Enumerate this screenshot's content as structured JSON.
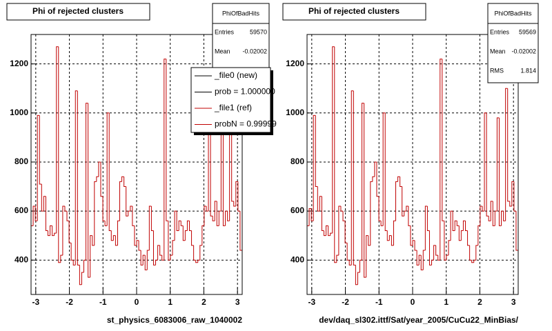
{
  "chart_data": [
    {
      "type": "histogram",
      "title": "Phi of rejected clusters",
      "x_label": "st_physics_6083006_raw_1040002",
      "stats": {
        "name": "PhiOfBadHits",
        "rows": [
          [
            "Entries",
            59570
          ],
          [
            "Mean",
            -0.02002
          ]
        ]
      },
      "legend": [
        {
          "label": "_file0 (new)",
          "color": "#000000"
        },
        {
          "label": "prob = 1.000000",
          "color": "#000000"
        },
        {
          "label": "_file1 (ref)",
          "color": "#c00000"
        },
        {
          "label": "probN = 0.99999",
          "color": "#c00000"
        }
      ],
      "color": "#c00000",
      "xlim": [
        -3.14,
        3.14
      ],
      "ylim": [
        260,
        1320
      ],
      "xticks": [
        -3,
        -2,
        -1,
        0,
        1,
        2,
        3
      ],
      "yticks": [
        400,
        600,
        800,
        1000,
        1200
      ],
      "grid": true,
      "bins": [
        -3.14,
        -3.0772,
        -3.0144,
        -2.9516,
        -2.8888,
        -2.826,
        -2.7632,
        -2.7004,
        -2.6376,
        -2.5748,
        -2.512,
        -2.4492,
        -2.3864,
        -2.3236,
        -2.2608,
        -2.198,
        -2.1352,
        -2.0724,
        -2.0096,
        -1.9468,
        -1.884,
        -1.8212,
        -1.7584,
        -1.6956,
        -1.6328,
        -1.57,
        -1.5072,
        -1.4444,
        -1.3816,
        -1.3188,
        -1.256,
        -1.1932,
        -1.1304,
        -1.0676,
        -1.0048,
        -0.942,
        -0.8792,
        -0.8164,
        -0.7536,
        -0.6908,
        -0.628,
        -0.5652,
        -0.5024,
        -0.4396,
        -0.3768,
        -0.314,
        -0.2512,
        -0.1884,
        -0.1256,
        -0.0628,
        0,
        0.0628,
        0.1256,
        0.1884,
        0.2512,
        0.314,
        0.3768,
        0.4396,
        0.5024,
        0.5652,
        0.628,
        0.6908,
        0.7536,
        0.8164,
        0.8792,
        0.942,
        1.0048,
        1.0676,
        1.1304,
        1.1932,
        1.256,
        1.3188,
        1.3816,
        1.4444,
        1.5072,
        1.57,
        1.6328,
        1.6956,
        1.7584,
        1.8212,
        1.884,
        1.9468,
        2.0096,
        2.0724,
        2.1352,
        2.198,
        2.2608,
        2.3236,
        2.3864,
        2.4492,
        2.512,
        2.5748,
        2.6376,
        2.7004,
        2.7632,
        2.826,
        2.8888,
        2.9516,
        3.0144,
        3.0772,
        3.14
      ],
      "values": [
        540,
        620,
        560,
        990,
        710,
        600,
        660,
        520,
        500,
        540,
        500,
        510,
        1270,
        390,
        420,
        620,
        600,
        560,
        470,
        400,
        380,
        1090,
        380,
        300,
        350,
        400,
        1040,
        330,
        500,
        460,
        720,
        740,
        800,
        660,
        560,
        540,
        1000,
        520,
        480,
        500,
        460,
        560,
        720,
        740,
        700,
        580,
        600,
        620,
        540,
        460,
        480,
        440,
        380,
        420,
        360,
        440,
        620,
        520,
        380,
        400,
        460,
        420,
        400,
        1220,
        560,
        400,
        420,
        480,
        600,
        520,
        560,
        540,
        480,
        520,
        560,
        520,
        460,
        400,
        390,
        400,
        460,
        540,
        620,
        600,
        1000,
        580,
        560,
        640,
        540,
        600,
        980,
        540,
        600,
        560,
        1100,
        640,
        620,
        720,
        600,
        440
      ]
    },
    {
      "type": "histogram",
      "title": "Phi of rejected clusters",
      "x_label": "dev/daq_sl302.ittf/Sat/year_2005/CuCu22_MinBias/",
      "stats": {
        "name": "PhiOfBadHits",
        "rows": [
          [
            "Entries",
            59569
          ],
          [
            "Mean",
            -0.02002
          ],
          [
            "RMS",
            1.814
          ]
        ]
      },
      "color": "#c00000",
      "xlim": [
        -3.14,
        3.14
      ],
      "ylim": [
        260,
        1320
      ],
      "xticks": [
        -3,
        -2,
        -1,
        0,
        1,
        2,
        3
      ],
      "yticks": [
        400,
        600,
        800,
        1000,
        1200
      ],
      "grid": true,
      "bins": [
        -3.14,
        -3.0772,
        -3.0144,
        -2.9516,
        -2.8888,
        -2.826,
        -2.7632,
        -2.7004,
        -2.6376,
        -2.5748,
        -2.512,
        -2.4492,
        -2.3864,
        -2.3236,
        -2.2608,
        -2.198,
        -2.1352,
        -2.0724,
        -2.0096,
        -1.9468,
        -1.884,
        -1.8212,
        -1.7584,
        -1.6956,
        -1.6328,
        -1.57,
        -1.5072,
        -1.4444,
        -1.3816,
        -1.3188,
        -1.256,
        -1.1932,
        -1.1304,
        -1.0676,
        -1.0048,
        -0.942,
        -0.8792,
        -0.8164,
        -0.7536,
        -0.6908,
        -0.628,
        -0.5652,
        -0.5024,
        -0.4396,
        -0.3768,
        -0.314,
        -0.2512,
        -0.1884,
        -0.1256,
        -0.0628,
        0,
        0.0628,
        0.1256,
        0.1884,
        0.2512,
        0.314,
        0.3768,
        0.4396,
        0.5024,
        0.5652,
        0.628,
        0.6908,
        0.7536,
        0.8164,
        0.8792,
        0.942,
        1.0048,
        1.0676,
        1.1304,
        1.1932,
        1.256,
        1.3188,
        1.3816,
        1.4444,
        1.5072,
        1.57,
        1.6328,
        1.6956,
        1.7584,
        1.8212,
        1.884,
        1.9468,
        2.0096,
        2.0724,
        2.1352,
        2.198,
        2.2608,
        2.3236,
        2.3864,
        2.4492,
        2.512,
        2.5748,
        2.6376,
        2.7004,
        2.7632,
        2.826,
        2.8888,
        2.9516,
        3.0144,
        3.0772,
        3.14
      ],
      "values": [
        540,
        610,
        560,
        990,
        700,
        600,
        660,
        520,
        500,
        540,
        500,
        510,
        1270,
        390,
        420,
        620,
        600,
        560,
        470,
        400,
        380,
        1090,
        380,
        300,
        350,
        400,
        1040,
        330,
        500,
        460,
        720,
        740,
        800,
        660,
        560,
        540,
        1000,
        520,
        480,
        500,
        460,
        560,
        720,
        740,
        700,
        580,
        600,
        620,
        540,
        460,
        480,
        440,
        380,
        420,
        360,
        440,
        620,
        520,
        380,
        400,
        460,
        420,
        400,
        1220,
        560,
        400,
        420,
        480,
        600,
        520,
        560,
        540,
        480,
        520,
        560,
        520,
        460,
        400,
        390,
        400,
        460,
        540,
        620,
        600,
        1000,
        580,
        560,
        640,
        540,
        600,
        980,
        540,
        600,
        560,
        1100,
        640,
        620,
        720,
        600,
        440
      ]
    }
  ]
}
